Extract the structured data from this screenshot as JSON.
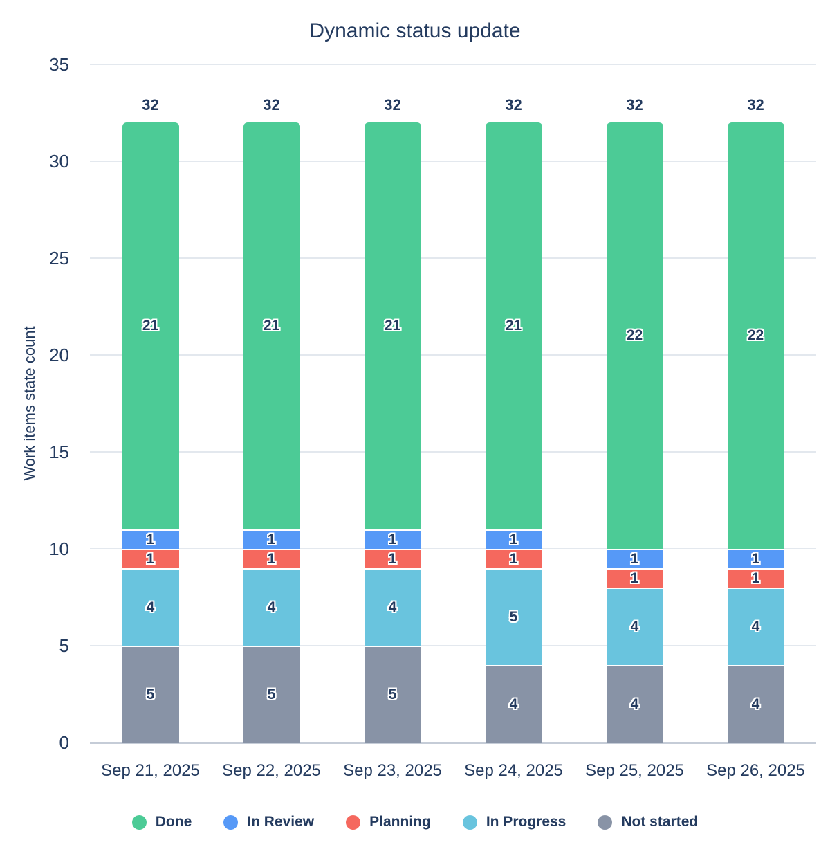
{
  "title": "Dynamic status update",
  "colors": {
    "text": "#243b5f",
    "gridline": "#e3e8ee",
    "axis_line": "#c5ccd7",
    "background": "#ffffff"
  },
  "chart_data": {
    "type": "bar",
    "stacked": true,
    "title": "Dynamic status update",
    "xlabel": "",
    "ylabel": "Work items state count",
    "categories": [
      "Sep 21, 2025",
      "Sep 22, 2025",
      "Sep 23, 2025",
      "Sep 24, 2025",
      "Sep 25, 2025",
      "Sep 26, 2025"
    ],
    "series": [
      {
        "name": "Done",
        "color": "#4ccb96",
        "values": [
          21,
          21,
          21,
          21,
          22,
          22
        ]
      },
      {
        "name": "In Review",
        "color": "#5699f7",
        "values": [
          1,
          1,
          1,
          1,
          1,
          1
        ]
      },
      {
        "name": "Planning",
        "color": "#f5685e",
        "values": [
          1,
          1,
          1,
          1,
          1,
          1
        ]
      },
      {
        "name": "In Progress",
        "color": "#69c4de",
        "values": [
          4,
          4,
          4,
          5,
          4,
          4
        ]
      },
      {
        "name": "Not started",
        "color": "#8893a6",
        "values": [
          5,
          5,
          5,
          4,
          4,
          4
        ]
      }
    ],
    "totals": [
      32,
      32,
      32,
      32,
      32,
      32
    ],
    "ylim": [
      0,
      35
    ],
    "yticks": [
      0,
      5,
      10,
      15,
      20,
      25,
      30,
      35
    ],
    "grid": true,
    "legend_position": "bottom",
    "bar_labels": true
  }
}
